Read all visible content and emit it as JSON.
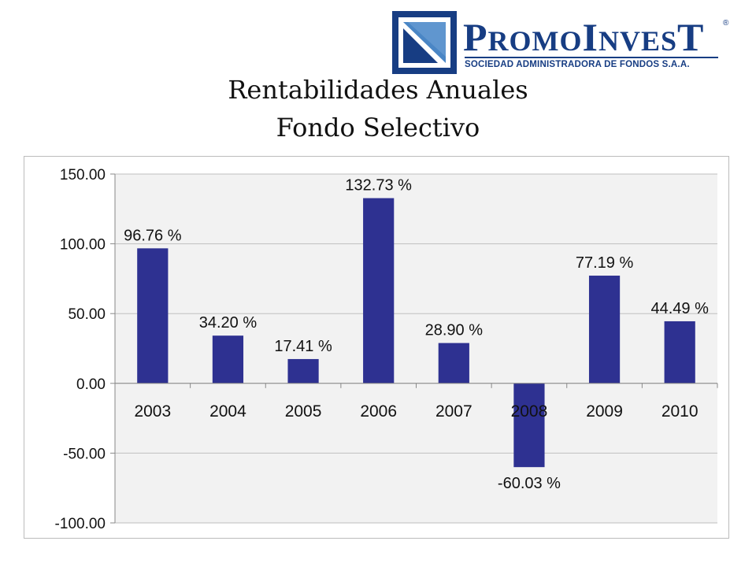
{
  "logo": {
    "name_p": "P",
    "name_romo": "ROMO",
    "name_i": "I",
    "name_nves": "NVES",
    "name_t": "T",
    "registered": "®",
    "subtitle": "SOCIEDAD ADMINISTRADORA DE FONDOS S.A.A.",
    "colors": {
      "brand": "#173d83",
      "mark_light": "#4a86c5"
    }
  },
  "title": {
    "line1": "Rentabilidades Anuales",
    "line2": "Fondo Selectivo"
  },
  "chart_data": {
    "type": "bar",
    "categories": [
      "2003",
      "2004",
      "2005",
      "2006",
      "2007",
      "2008",
      "2009",
      "2010"
    ],
    "values": [
      96.76,
      34.2,
      17.41,
      132.73,
      28.9,
      -60.03,
      77.19,
      44.49
    ],
    "data_labels": [
      "96.76 %",
      "34.20 %",
      "17.41 %",
      "132.73 %",
      "28.90 %",
      "-60.03 %",
      "77.19 %",
      "44.49 %"
    ],
    "y_ticks": [
      150,
      100,
      50,
      0,
      -50,
      -100
    ],
    "y_tick_labels": [
      "150.00",
      "100.00",
      "50.00",
      "0.00",
      "-50.00",
      "-100.00"
    ],
    "ylim": [
      -100,
      150
    ],
    "grid": true,
    "legend": "none",
    "bar_color": "#2e3191",
    "grid_color": "#bfbfbf",
    "plot_bg": "#f2f2f2"
  }
}
